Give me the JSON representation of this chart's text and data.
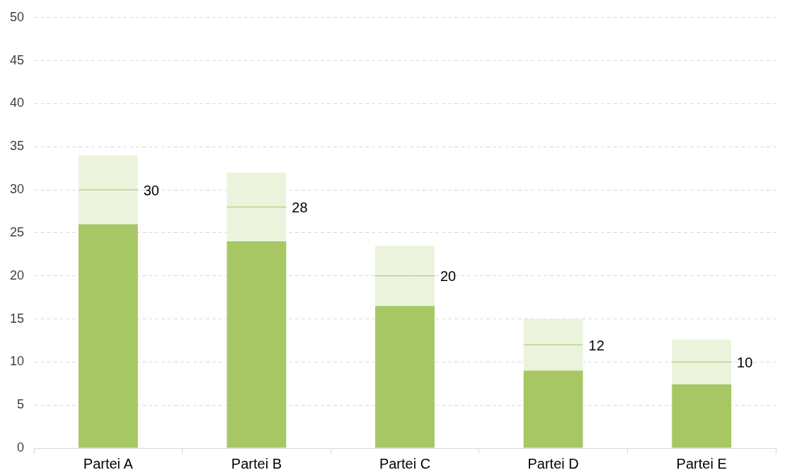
{
  "chart_data": {
    "type": "bar",
    "stacked": true,
    "categories": [
      "Partei A",
      "Partei B",
      "Partei C",
      "Partei D",
      "Partei E"
    ],
    "series": [
      {
        "color": "#a6c764",
        "values": [
          26,
          24,
          16.5,
          9,
          7.4
        ]
      },
      {
        "color": "#ebf3dd",
        "values": [
          4,
          4,
          3.5,
          3,
          2.6
        ]
      },
      {
        "color": "#ebf3dd",
        "values": [
          4,
          4,
          3.5,
          3,
          2.6
        ]
      }
    ],
    "annotations": [
      {
        "text": "30",
        "x": "Partei A",
        "y": 30
      },
      {
        "text": "28",
        "x": "Partei B",
        "y": 28
      },
      {
        "text": "20",
        "x": "Partei C",
        "y": 20
      },
      {
        "text": "12",
        "x": "Partei D",
        "y": 12
      },
      {
        "text": "10",
        "x": "Partei E",
        "y": 10
      }
    ],
    "ylim": [
      0,
      50
    ],
    "yticks": [
      0,
      5,
      10,
      15,
      20,
      25,
      30,
      35,
      40,
      45,
      50
    ],
    "grid": "y",
    "legend": false
  }
}
